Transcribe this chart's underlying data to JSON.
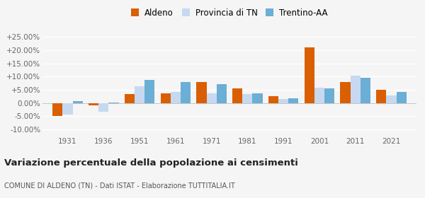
{
  "years": [
    "1931",
    "1936",
    "1951",
    "1961",
    "1971",
    "1981",
    "1991",
    "2001",
    "2011",
    "2021"
  ],
  "aldeno": [
    -4.8,
    -0.8,
    3.5,
    3.7,
    7.8,
    5.5,
    2.7,
    21.0,
    7.8,
    5.0
  ],
  "provincia_tn": [
    -4.3,
    -3.4,
    6.2,
    4.3,
    3.7,
    3.4,
    1.4,
    5.8,
    10.3,
    2.9
  ],
  "trentino_aa": [
    0.8,
    0.2,
    8.8,
    7.8,
    7.0,
    3.7,
    1.9,
    5.5,
    9.5,
    4.2
  ],
  "color_aldeno": "#d95f02",
  "color_provincia": "#c6d9f0",
  "color_trentino": "#6baed6",
  "title": "Variazione percentuale della popolazione ai censimenti",
  "subtitle": "COMUNE DI ALDENO (TN) - Dati ISTAT - Elaborazione TUTTITALIA.IT",
  "legend_labels": [
    "Aldeno",
    "Provincia di TN",
    "Trentino-AA"
  ],
  "ylim": [
    -12,
    27
  ],
  "yticks": [
    -10,
    -5,
    0,
    5,
    10,
    15,
    20,
    25
  ],
  "background_color": "#f5f5f5"
}
